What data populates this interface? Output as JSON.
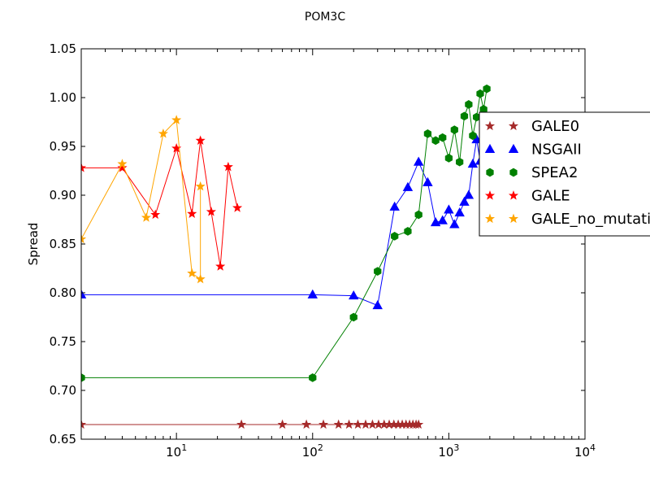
{
  "chart_data": {
    "type": "line",
    "title": "POM3C",
    "xlabel": "",
    "ylabel": "Spread",
    "xscale": "log",
    "xlim": [
      2,
      10000
    ],
    "ylim": [
      0.65,
      1.05
    ],
    "grid": false,
    "legend_placement": "right",
    "x_tick_labels": [
      {
        "base": "10",
        "exp": "1",
        "value": 10
      },
      {
        "base": "10",
        "exp": "2",
        "value": 100
      },
      {
        "base": "10",
        "exp": "3",
        "value": 1000
      },
      {
        "base": "10",
        "exp": "4",
        "value": 10000
      }
    ],
    "y_ticks": [
      0.65,
      0.7,
      0.75,
      0.8,
      0.85,
      0.9,
      0.95,
      1.0,
      1.05
    ],
    "y_tick_labels": [
      "0.65",
      "0.70",
      "0.75",
      "0.80",
      "0.85",
      "0.90",
      "0.95",
      "1.00",
      "1.05"
    ],
    "series": [
      {
        "name": "GALE0",
        "marker": "star",
        "color": "#a52a2a",
        "x": [
          2,
          30,
          60,
          90,
          120,
          155,
          185,
          215,
          245,
          275,
          305,
          335,
          365,
          395,
          425,
          455,
          485,
          515,
          545,
          575,
          600
        ],
        "y": [
          0.665,
          0.665,
          0.665,
          0.665,
          0.665,
          0.665,
          0.665,
          0.665,
          0.665,
          0.665,
          0.665,
          0.665,
          0.665,
          0.665,
          0.665,
          0.665,
          0.665,
          0.665,
          0.665,
          0.665,
          0.665
        ]
      },
      {
        "name": "NSGAII",
        "marker": "triangle",
        "color": "#0000ff",
        "x": [
          2,
          100,
          200,
          300,
          400,
          500,
          600,
          700,
          800,
          900,
          1000,
          1100,
          1200,
          1300,
          1400,
          1500,
          1600,
          1700,
          1800,
          1900
        ],
        "y": [
          0.798,
          0.798,
          0.797,
          0.787,
          0.888,
          0.908,
          0.934,
          0.913,
          0.872,
          0.874,
          0.885,
          0.87,
          0.882,
          0.893,
          0.9,
          0.932,
          0.957,
          0.935,
          0.95,
          0.96
        ]
      },
      {
        "name": "SPEA2",
        "marker": "hexagon",
        "color": "#008000",
        "x": [
          2,
          100,
          200,
          300,
          400,
          500,
          600,
          700,
          800,
          900,
          1000,
          1100,
          1200,
          1300,
          1400,
          1500,
          1600,
          1700,
          1800,
          1900
        ],
        "y": [
          0.713,
          0.713,
          0.775,
          0.822,
          0.858,
          0.863,
          0.88,
          0.963,
          0.956,
          0.959,
          0.938,
          0.967,
          0.934,
          0.981,
          0.993,
          0.961,
          0.98,
          1.004,
          0.988,
          1.009
        ]
      },
      {
        "name": "GALE",
        "marker": "star",
        "color": "#ff0000",
        "x": [
          2,
          4,
          7,
          10,
          13,
          15,
          18,
          21,
          24,
          28
        ],
        "y": [
          0.928,
          0.928,
          0.88,
          0.948,
          0.881,
          0.956,
          0.883,
          0.827,
          0.929,
          0.887
        ]
      },
      {
        "name": "GALE_no_mutation",
        "marker": "star",
        "color": "#ffa500",
        "x": [
          2,
          4,
          6,
          8,
          10,
          13,
          15,
          15
        ],
        "y": [
          0.855,
          0.932,
          0.877,
          0.963,
          0.977,
          0.82,
          0.814,
          0.909
        ]
      }
    ]
  }
}
